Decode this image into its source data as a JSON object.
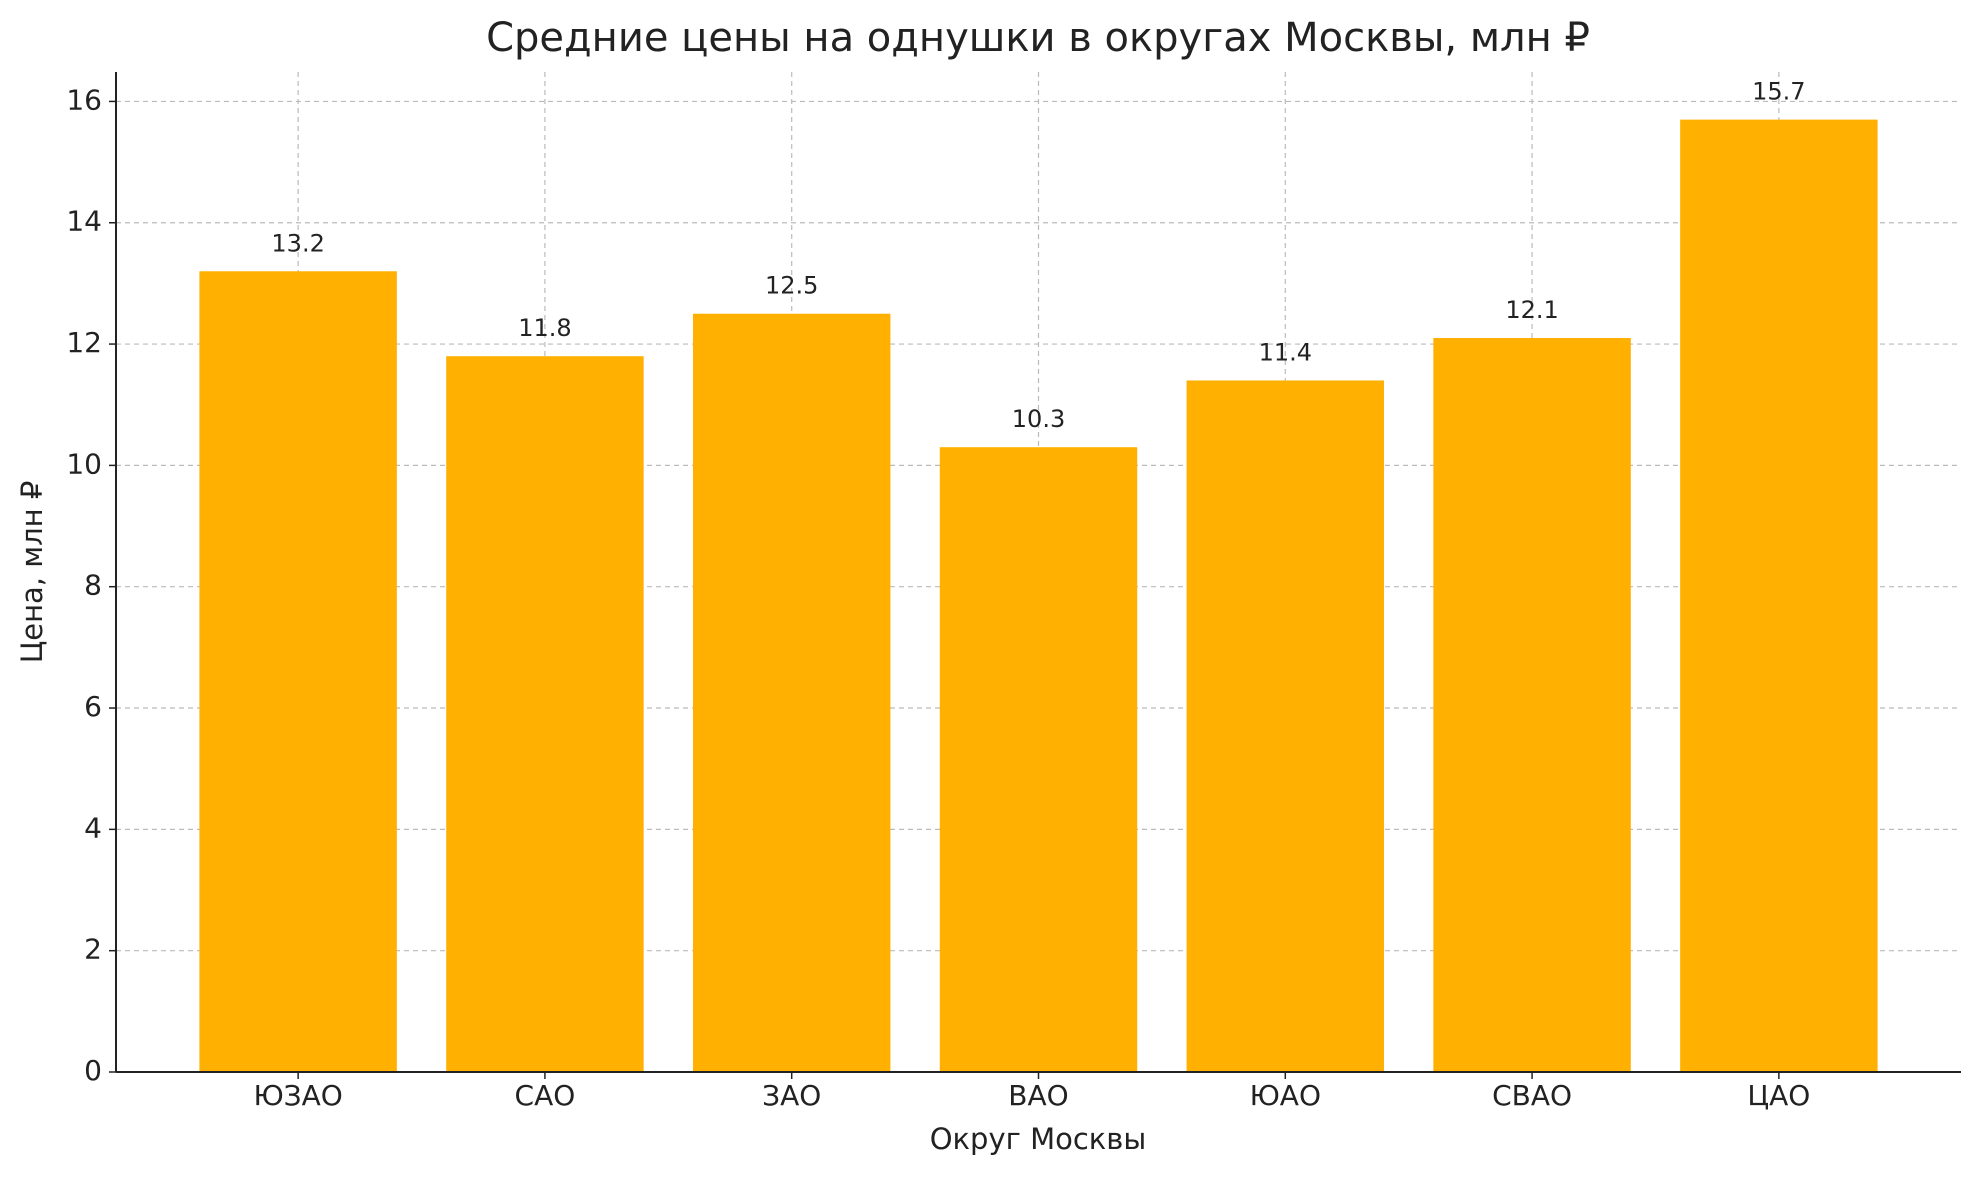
{
  "chart_data": {
    "type": "bar",
    "title": "Средние цены на однушки в округах Москвы, млн ₽",
    "x_label": "Округ Москвы",
    "y_label": "Цена, млн ₽",
    "categories": [
      "ЮЗАО",
      "САО",
      "ЗАО",
      "ВАО",
      "ЮАО",
      "СВАО",
      "ЦАО"
    ],
    "values": [
      13.2,
      11.8,
      12.5,
      10.3,
      11.4,
      12.1,
      15.7
    ],
    "color": "#ffb000",
    "ylim": [
      0,
      16.485
    ],
    "yticks": [
      0,
      2,
      4,
      6,
      8,
      10,
      12,
      14,
      16
    ],
    "grid": true
  }
}
